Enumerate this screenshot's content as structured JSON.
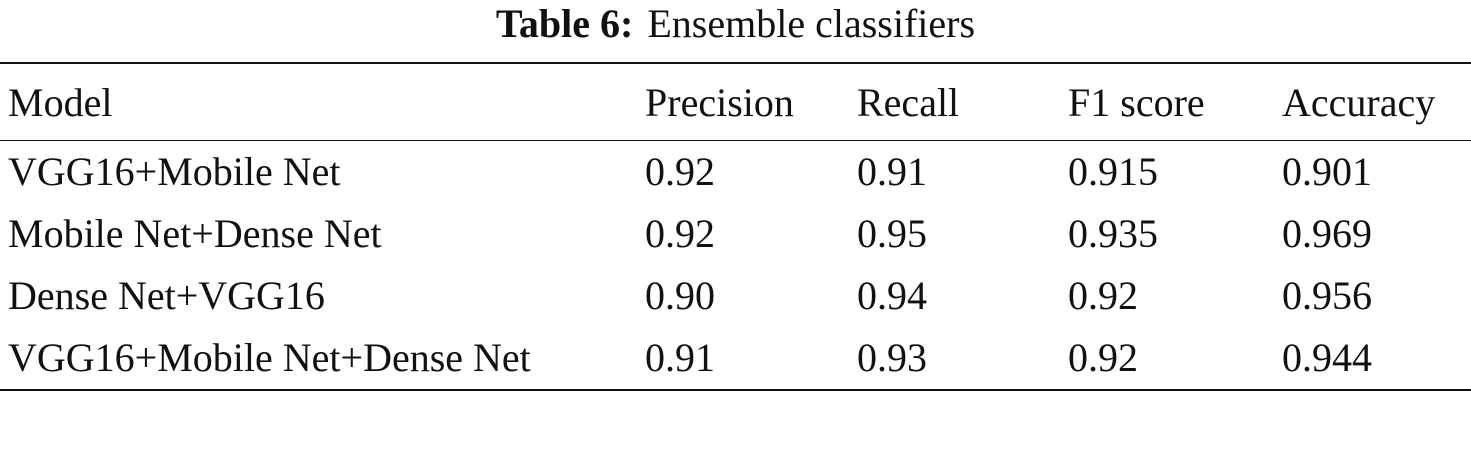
{
  "title": {
    "label": "Table 6:",
    "text": "Ensemble classifiers"
  },
  "table": {
    "header": [
      "Model",
      "Precision",
      "Recall",
      "F1 score",
      "Accuracy"
    ],
    "rows": [
      [
        "VGG16+Mobile Net",
        "0.92",
        "0.91",
        "0.915",
        "0.901"
      ],
      [
        "Mobile Net+Dense Net",
        "0.92",
        "0.95",
        "0.935",
        "0.969"
      ],
      [
        "Dense Net+VGG16",
        "0.90",
        "0.94",
        "0.92",
        "0.956"
      ],
      [
        "VGG16+Mobile Net+Dense Net",
        "0.91",
        "0.93",
        "0.92",
        "0.944"
      ]
    ]
  }
}
